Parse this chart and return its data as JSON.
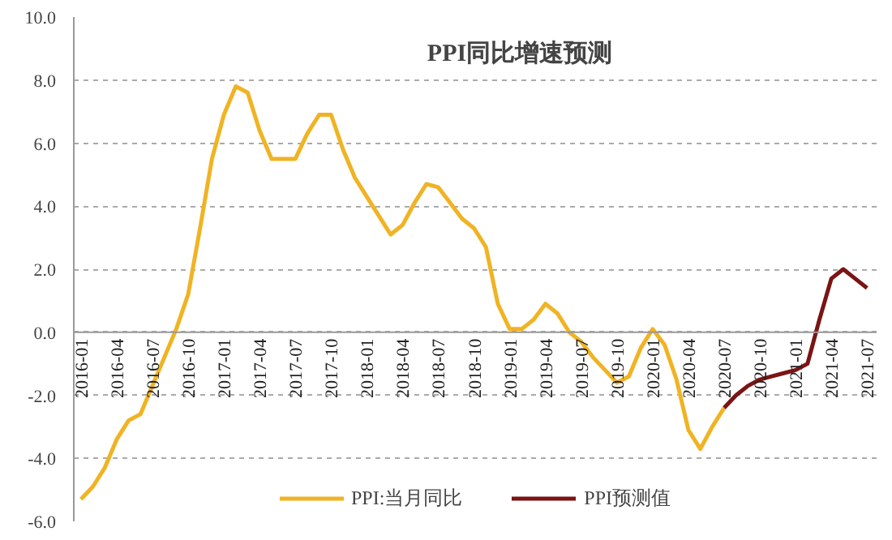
{
  "chart_data": {
    "type": "line",
    "title": "PPI同比增速预测",
    "categories": [
      "2016-01",
      null,
      null,
      "2016-04",
      null,
      null,
      "2016-07",
      null,
      null,
      "2016-10",
      null,
      null,
      "2017-01",
      null,
      null,
      "2017-04",
      null,
      null,
      "2017-07",
      null,
      null,
      "2017-10",
      null,
      null,
      "2018-01",
      null,
      null,
      "2018-04",
      null,
      null,
      "2018-07",
      null,
      null,
      "2018-10",
      null,
      null,
      "2019-01",
      null,
      null,
      "2019-04",
      null,
      null,
      "2019-07",
      null,
      null,
      "2019-10",
      null,
      null,
      "2020-01",
      null,
      null,
      "2020-04",
      null,
      null,
      "2020-07",
      null,
      null,
      "2020-10",
      null,
      null,
      "2021-01",
      null,
      null,
      "2021-04",
      null,
      null,
      "2021-07"
    ],
    "series": [
      {
        "name": "PPI:当月同比",
        "color": "#f0b323",
        "values": [
          -5.3,
          -4.9,
          -4.3,
          -3.4,
          -2.8,
          -2.6,
          -1.7,
          -0.8,
          0.1,
          1.2,
          3.3,
          5.5,
          6.9,
          7.8,
          7.6,
          6.4,
          5.5,
          5.5,
          5.5,
          6.3,
          6.9,
          6.9,
          5.8,
          4.9,
          4.3,
          3.7,
          3.1,
          3.4,
          4.1,
          4.7,
          4.6,
          4.1,
          3.6,
          3.3,
          2.7,
          0.9,
          0.1,
          0.1,
          0.4,
          0.9,
          0.6,
          0.0,
          -0.3,
          -0.8,
          -1.2,
          -1.6,
          -1.4,
          -0.5,
          0.1,
          -0.4,
          -1.5,
          -3.1,
          -3.7,
          -3.0,
          -2.4,
          null,
          null,
          null,
          null,
          null,
          null,
          null,
          null,
          null,
          null,
          null,
          null
        ]
      },
      {
        "name": "PPI预测值",
        "color": "#7b1414",
        "values": [
          null,
          null,
          null,
          null,
          null,
          null,
          null,
          null,
          null,
          null,
          null,
          null,
          null,
          null,
          null,
          null,
          null,
          null,
          null,
          null,
          null,
          null,
          null,
          null,
          null,
          null,
          null,
          null,
          null,
          null,
          null,
          null,
          null,
          null,
          null,
          null,
          null,
          null,
          null,
          null,
          null,
          null,
          null,
          null,
          null,
          null,
          null,
          null,
          null,
          null,
          null,
          null,
          null,
          null,
          -2.4,
          -2.0,
          -1.7,
          -1.5,
          -1.4,
          -1.3,
          -1.2,
          -1.0,
          0.4,
          1.7,
          2.0,
          1.7,
          1.4
        ]
      }
    ],
    "ylim": [
      -6,
      10
    ],
    "yticks": [
      {
        "value": -6,
        "label": "-6.0"
      },
      {
        "value": -4,
        "label": "-4.0"
      },
      {
        "value": -2,
        "label": "-2.0"
      },
      {
        "value": 0,
        "label": "0.0"
      },
      {
        "value": 2,
        "label": "2.0"
      },
      {
        "value": 4,
        "label": "4.0"
      },
      {
        "value": 6,
        "label": "6.0"
      },
      {
        "value": 8,
        "label": "8.0"
      },
      {
        "value": 10,
        "label": "10.0"
      }
    ],
    "grid": "y",
    "legend": "bottom",
    "line_style": "solid"
  }
}
